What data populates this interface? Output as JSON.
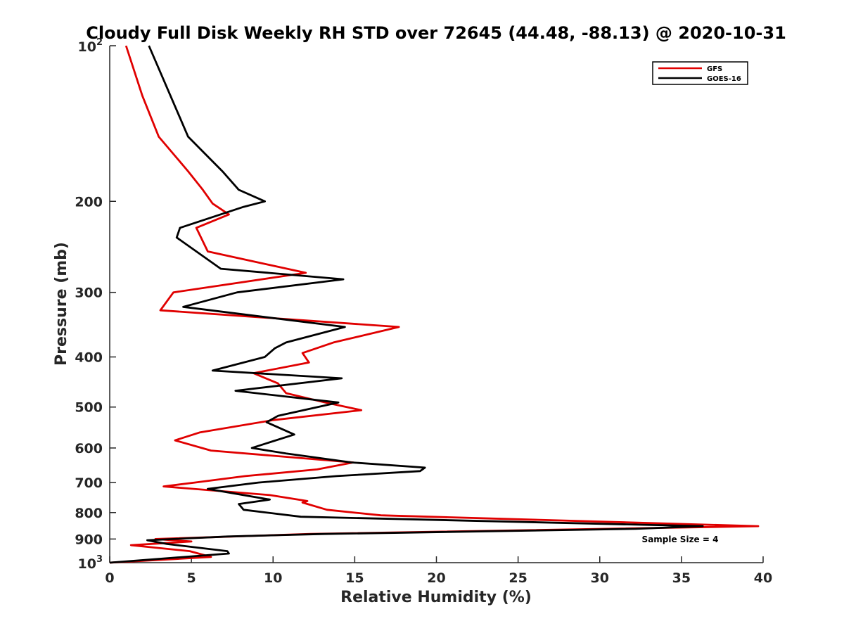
{
  "chart_data": {
    "type": "line",
    "title": "Cloudy Full Disk Weekly RH STD over 72645 (44.48, -88.13) @ 2020-10-31",
    "xlabel": "Relative Humidity (%)",
    "ylabel": "Pressure (mb)",
    "xlim": [
      0,
      40
    ],
    "ylim": [
      100,
      1000
    ],
    "y_scale": "log",
    "y_reversed": true,
    "x_ticks": [
      "0",
      "5",
      "10",
      "15",
      "20",
      "25",
      "30",
      "35",
      "40"
    ],
    "y_ticks": [
      {
        "value": 100,
        "base": "10",
        "exp": "2"
      },
      {
        "value": 200,
        "label": "200"
      },
      {
        "value": 300,
        "label": "300"
      },
      {
        "value": 400,
        "label": "400"
      },
      {
        "value": 500,
        "label": "500"
      },
      {
        "value": 600,
        "label": "600"
      },
      {
        "value": 700,
        "label": "700"
      },
      {
        "value": 800,
        "label": "800"
      },
      {
        "value": 900,
        "label": "900"
      },
      {
        "value": 1000,
        "base": "10",
        "exp": "3"
      }
    ],
    "grid": false,
    "legend_position": "top-right",
    "annotation": "Sample Size = 4",
    "series": [
      {
        "name": "GFS",
        "color": "#e00000",
        "points": [
          [
            1.0,
            100
          ],
          [
            2.0,
            125
          ],
          [
            3.0,
            150
          ],
          [
            4.8,
            175
          ],
          [
            5.7,
            190
          ],
          [
            6.3,
            202
          ],
          [
            7.3,
            212
          ],
          [
            5.3,
            225
          ],
          [
            6.0,
            250
          ],
          [
            12.0,
            275
          ],
          [
            3.9,
            300
          ],
          [
            3.1,
            325
          ],
          [
            17.7,
            350
          ],
          [
            13.7,
            375
          ],
          [
            11.8,
            393
          ],
          [
            12.2,
            410
          ],
          [
            8.8,
            430
          ],
          [
            10.3,
            450
          ],
          [
            10.8,
            470
          ],
          [
            13.2,
            490
          ],
          [
            15.4,
            507
          ],
          [
            10.0,
            530
          ],
          [
            5.5,
            560
          ],
          [
            4.0,
            580
          ],
          [
            6.2,
            607
          ],
          [
            14.9,
            640
          ],
          [
            12.7,
            660
          ],
          [
            8.3,
            680
          ],
          [
            5.2,
            700
          ],
          [
            3.3,
            712
          ],
          [
            9.8,
            740
          ],
          [
            12.1,
            760
          ],
          [
            11.8,
            765
          ],
          [
            13.3,
            790
          ],
          [
            16.6,
            810
          ],
          [
            39.7,
            850
          ],
          [
            12.3,
            880
          ],
          [
            2.8,
            900
          ],
          [
            5.0,
            910
          ],
          [
            1.3,
            925
          ],
          [
            4.9,
            950
          ],
          [
            6.2,
            975
          ],
          [
            0,
            1000
          ]
        ]
      },
      {
        "name": "GOES-16",
        "color": "#000000",
        "points": [
          [
            2.4,
            100
          ],
          [
            4.8,
            150
          ],
          [
            6.9,
            175
          ],
          [
            7.9,
            190
          ],
          [
            9.5,
            200
          ],
          [
            8.2,
            205
          ],
          [
            4.3,
            225
          ],
          [
            4.1,
            235
          ],
          [
            6.8,
            270
          ],
          [
            14.3,
            283
          ],
          [
            7.8,
            300
          ],
          [
            4.5,
            320
          ],
          [
            14.4,
            350
          ],
          [
            10.8,
            375
          ],
          [
            10.1,
            385
          ],
          [
            9.5,
            400
          ],
          [
            6.3,
            425
          ],
          [
            14.2,
            440
          ],
          [
            7.7,
            465
          ],
          [
            14.0,
            490
          ],
          [
            10.3,
            520
          ],
          [
            9.6,
            535
          ],
          [
            11.3,
            565
          ],
          [
            8.7,
            600
          ],
          [
            10.8,
            615
          ],
          [
            14.8,
            640
          ],
          [
            19.3,
            655
          ],
          [
            19.0,
            665
          ],
          [
            13.9,
            680
          ],
          [
            9.1,
            700
          ],
          [
            6.0,
            720
          ],
          [
            9.8,
            755
          ],
          [
            7.9,
            770
          ],
          [
            8.2,
            790
          ],
          [
            11.7,
            815
          ],
          [
            36.3,
            850
          ],
          [
            32.2,
            860
          ],
          [
            13.1,
            880
          ],
          [
            7.2,
            890
          ],
          [
            2.3,
            905
          ],
          [
            3.5,
            920
          ],
          [
            7.2,
            950
          ],
          [
            7.3,
            960
          ],
          [
            0,
            1000
          ]
        ]
      }
    ]
  }
}
